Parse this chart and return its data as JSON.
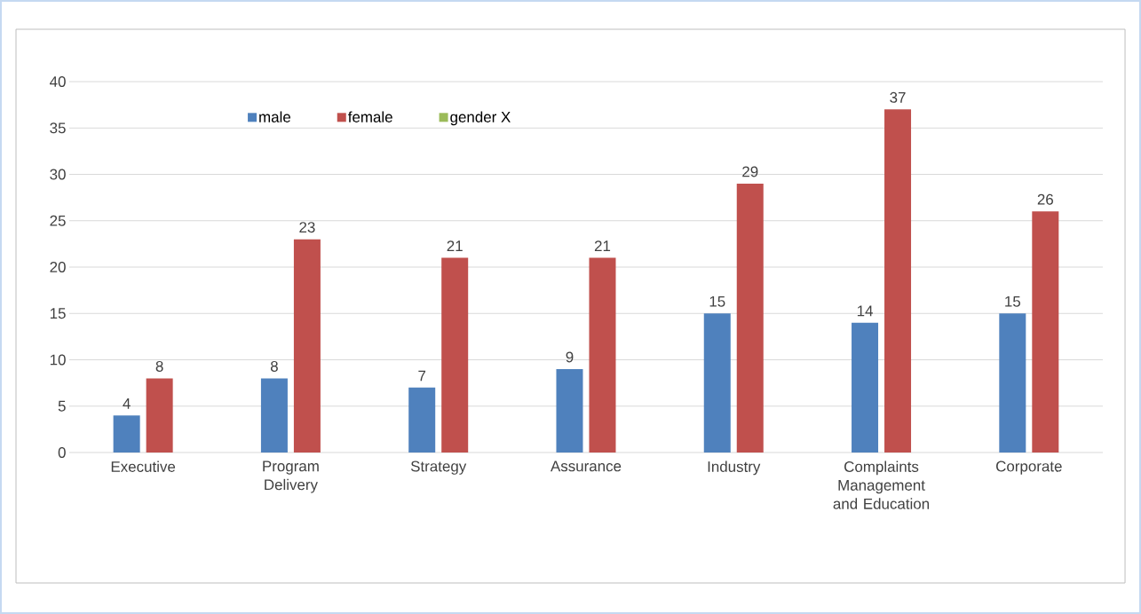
{
  "chart_data": {
    "type": "bar",
    "categories": [
      "Executive",
      "Program Delivery",
      "Strategy",
      "Assurance",
      "Industry",
      "Complaints Management and Education",
      "Corporate"
    ],
    "series": [
      {
        "name": "male",
        "color": "#4f81bd",
        "values": [
          4,
          8,
          7,
          9,
          15,
          14,
          15
        ]
      },
      {
        "name": "female",
        "color": "#c0504d",
        "values": [
          8,
          23,
          21,
          21,
          29,
          37,
          26
        ]
      },
      {
        "name": "gender X",
        "color": "#9bbb59",
        "values": [
          null,
          null,
          null,
          null,
          null,
          null,
          null
        ]
      }
    ],
    "ylim": [
      0,
      40
    ],
    "yticks": [
      0,
      5,
      10,
      15,
      20,
      25,
      30,
      35,
      40
    ],
    "grid": "y",
    "legend": "top",
    "data_labels": true
  }
}
